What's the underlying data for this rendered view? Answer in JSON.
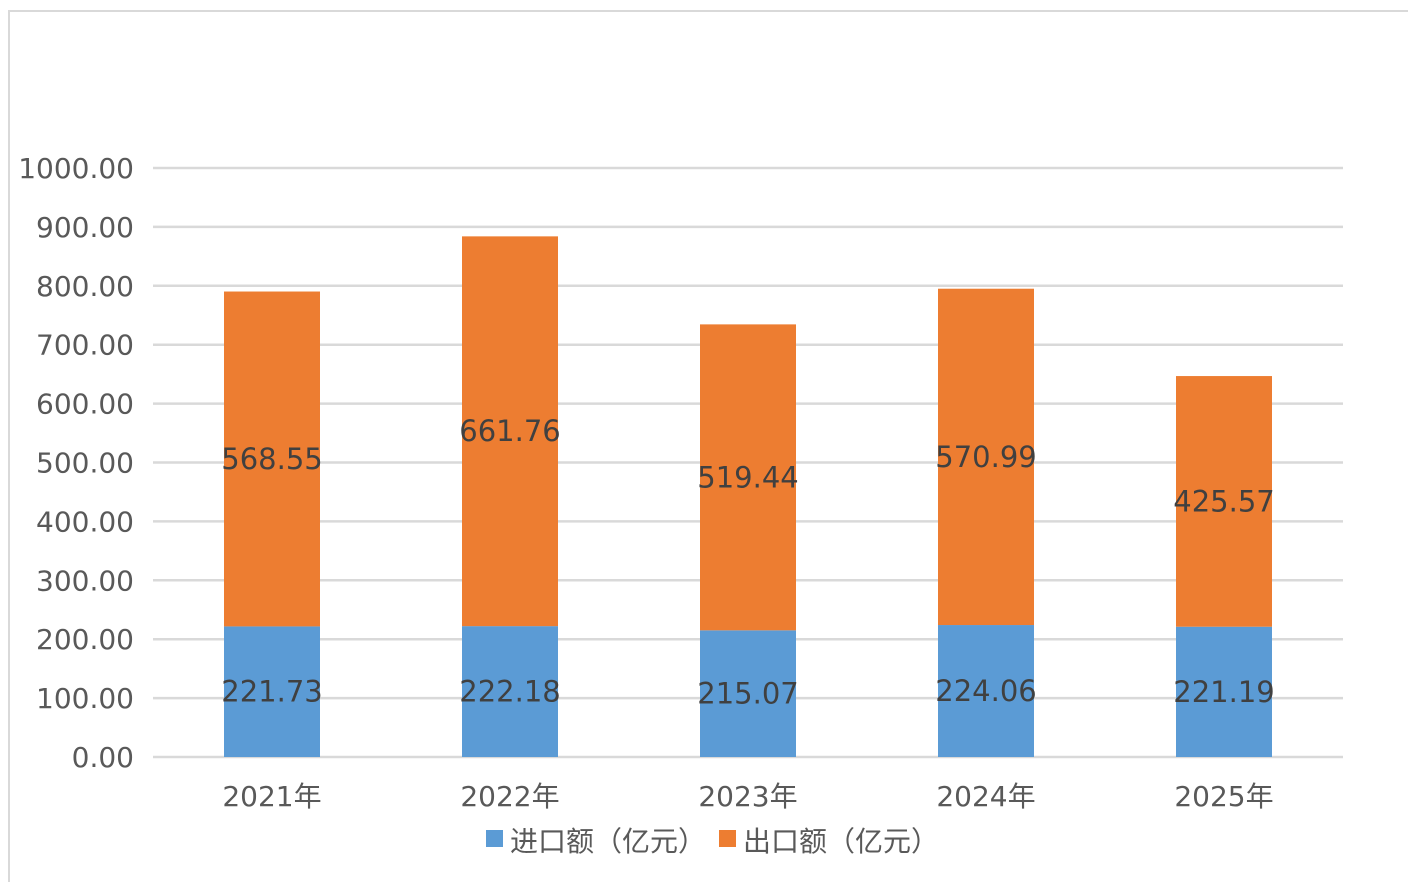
{
  "chart_data": {
    "type": "bar",
    "stacked": true,
    "title": "",
    "xlabel": "",
    "ylabel": "",
    "categories": [
      "2021年",
      "2022年",
      "2023年",
      "2024年",
      "2025年"
    ],
    "series": [
      {
        "name": "进口额（亿元）",
        "color": "#5b9bd5",
        "values": [
          221.73,
          222.18,
          215.07,
          224.06,
          221.19
        ]
      },
      {
        "name": "出口额（亿元）",
        "color": "#ed7d31",
        "values": [
          568.55,
          661.76,
          519.44,
          570.99,
          425.57
        ]
      }
    ],
    "ylim": [
      0,
      1000
    ],
    "yticks": [
      "0.00",
      "100.00",
      "200.00",
      "300.00",
      "400.00",
      "500.00",
      "600.00",
      "700.00",
      "800.00",
      "900.00",
      "1000.00"
    ],
    "grid": true,
    "legend_position": "bottom"
  }
}
